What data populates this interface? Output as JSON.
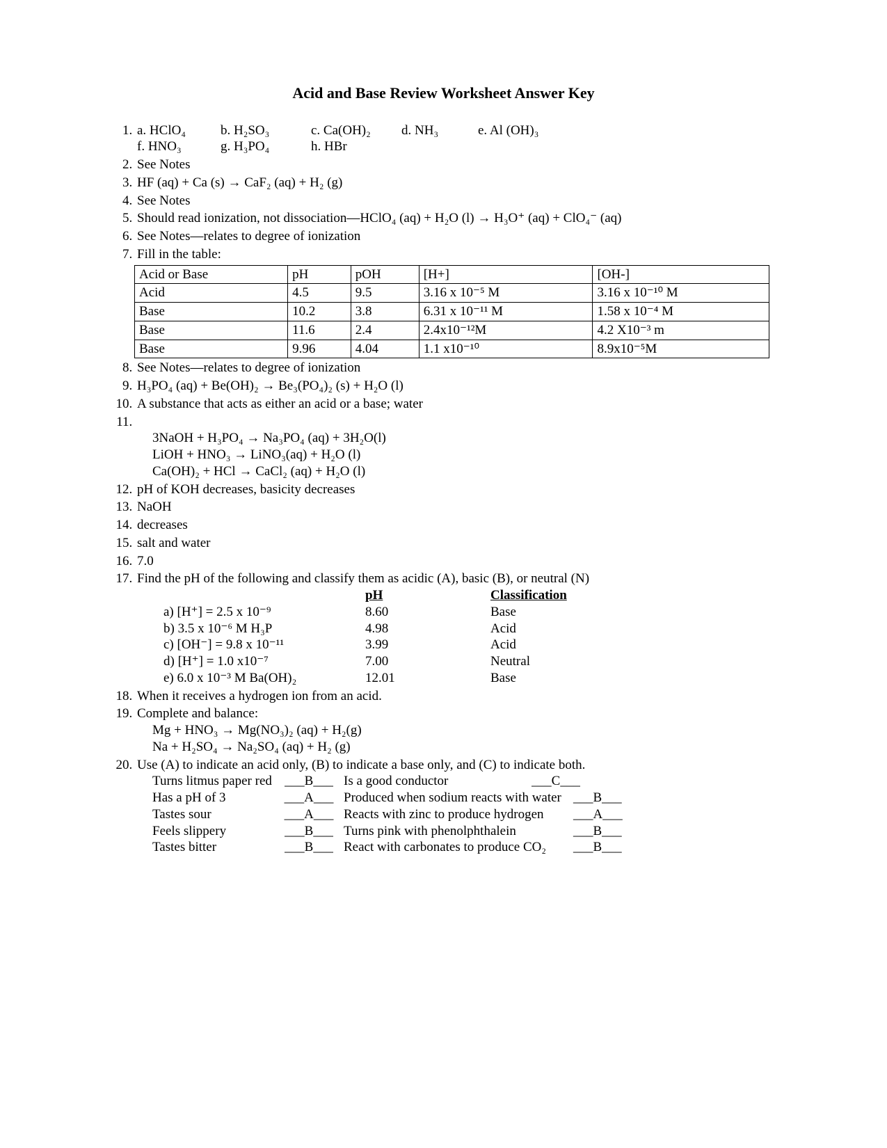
{
  "title": "Acid and Base Review Worksheet Answer Key",
  "q1": {
    "a": "a.  HClO₄",
    "b": "b.  H₂SO₃",
    "c": "c.  Ca(OH)₂",
    "d": "d.  NH₃",
    "e": "e.  Al (OH)₃",
    "f": "f.  HNO₃",
    "g": "g.  H₃PO₄",
    "h": "h.  HBr"
  },
  "q2": "See Notes",
  "q3": "HF (aq) + Ca (s)  →  CaF₂ (aq) + H₂ (g)",
  "q4": "See Notes",
  "q5": "Should read ionization, not dissociation—HClO₄ (aq) + H₂O (l) → H₃O⁺ (aq) + ClO₄⁻ (aq)",
  "q6": "See Notes—relates to degree of ionization",
  "q7": {
    "intro": "Fill in the table:",
    "columns": [
      "Acid or Base",
      "pH",
      "pOH",
      "[H+]",
      "[OH-]"
    ],
    "rows": [
      [
        "Acid",
        "4.5",
        "9.5",
        "3.16 x 10⁻⁵ M",
        "3.16 x 10⁻¹⁰ M"
      ],
      [
        "Base",
        "10.2",
        "3.8",
        "6.31 x 10⁻¹¹ M",
        "1.58 x 10⁻⁴ M"
      ],
      [
        "Base",
        "11.6",
        "2.4",
        "2.4x10⁻¹²M",
        "4.2 X10⁻³ m"
      ],
      [
        "Base",
        "9.96",
        "4.04",
        "1.1 x10⁻¹⁰",
        "8.9x10⁻⁵M"
      ]
    ]
  },
  "q8": "See Notes—relates to degree of ionization",
  "q9": "H₃PO₄ (aq) + Be(OH)₂ → Be₃(PO₄)₂ (s) + H₂O (l)",
  "q10": "A substance that acts as either an acid or a base; water",
  "q11": {
    "l1": "3NaOH   +  H₃PO₄   →   Na₃PO₄ (aq) + 3H₂O(l)",
    "l2": "LiOH   +   HNO₃    →     LiNO₃(aq) + H₂O (l)",
    "l3": "Ca(OH)₂    +   HCl  →  CaCl₂ (aq) + H₂O (l)"
  },
  "q12": "pH of KOH decreases, basicity decreases",
  "q13": "NaOH",
  "q14": "decreases",
  "q15": "salt and water",
  "q16": "7.0",
  "q17": {
    "intro": "Find the pH of the following and classify them as acidic (A), basic (B), or neutral (N)",
    "headers": {
      "ph": "pH",
      "cls": "Classification"
    },
    "rows": [
      {
        "lbl": "a)   [H⁺] = 2.5 x 10⁻⁹",
        "ph": "8.60",
        "cls": "Base"
      },
      {
        "lbl": "b)   3.5 x 10⁻⁶ M H₃P",
        "ph": "4.98",
        "cls": "Acid"
      },
      {
        "lbl": "c)   [OH⁻] = 9.8 x 10⁻¹¹",
        "ph": "3.99",
        "cls": "Acid"
      },
      {
        "lbl": "d)   [H⁺] = 1.0 x10⁻⁷",
        "ph": "7.00",
        "cls": "Neutral"
      },
      {
        "lbl": "e)   6.0 x 10⁻³ M Ba(OH)₂",
        "ph": "12.01",
        "cls": "Base"
      }
    ]
  },
  "q18": "When it receives a hydrogen ion from an acid.",
  "q19": {
    "intro": "Complete and balance:",
    "l1": "Mg  +  HNO₃    → Mg(NO₃)₂ (aq) + H₂(g)",
    "l2": "Na    +   H₂SO₄  → Na₂SO₄ (aq) + H₂ (g)"
  },
  "q20": {
    "intro": "Use (A) to indicate an acid only, (B) to indicate a base only, and (C) to indicate both.",
    "rows": [
      {
        "p1": "Turns litmus paper red",
        "a1": "B",
        "p2": "Is a good conductor",
        "a2": "C"
      },
      {
        "p1": "Has a pH of 3",
        "a1": "A",
        "p2": "Produced when sodium reacts with water",
        "a2": "B"
      },
      {
        "p1": "Tastes sour",
        "a1": "A",
        "p2": "Reacts with zinc to produce hydrogen",
        "a2": "A"
      },
      {
        "p1": "Feels slippery",
        "a1": "B",
        "p2": "Turns pink with phenolphthalein",
        "a2": "B"
      },
      {
        "p1": "Tastes bitter",
        "a1": "B",
        "p2": "React with carbonates to produce CO₂",
        "a2": "B"
      }
    ]
  }
}
